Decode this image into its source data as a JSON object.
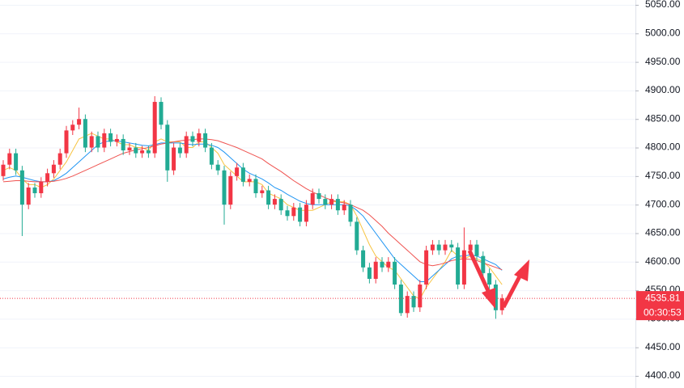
{
  "chart_data": {
    "type": "candlestick",
    "up_color": "#f23645",
    "down_color": "#22ab94",
    "ylim": [
      4400,
      5050
    ],
    "yticks": [
      {
        "value": 4400,
        "label": "4400.00"
      },
      {
        "value": 4450,
        "label": "4450.00"
      },
      {
        "value": 4500,
        "label": "4500.00"
      },
      {
        "value": 4550,
        "label": "4550.00"
      },
      {
        "value": 4600,
        "label": "4600.00"
      },
      {
        "value": 4650,
        "label": "4650.00"
      },
      {
        "value": 4700,
        "label": "4700.00"
      },
      {
        "value": 4750,
        "label": "4750.00"
      },
      {
        "value": 4800,
        "label": "4800.00"
      },
      {
        "value": 4850,
        "label": "4850.00"
      },
      {
        "value": 4900,
        "label": "4900.00"
      },
      {
        "value": 4950,
        "label": "4950.00"
      },
      {
        "value": 5000,
        "label": "5000.00"
      },
      {
        "value": 5050,
        "label": "5050.00"
      }
    ],
    "grid": true,
    "last_price": 4535.81,
    "countdown": "00:30:53",
    "open": [
      4750,
      4770,
      4790,
      4760,
      4700,
      4730,
      4720,
      4740,
      4755,
      4770,
      4790,
      4830,
      4840,
      4850,
      4800,
      4820,
      4800,
      4825,
      4810,
      4815,
      4795,
      4800,
      4790,
      4795,
      4790,
      4880,
      4840,
      4760,
      4800,
      4790,
      4820,
      4810,
      4825,
      4800,
      4770,
      4760,
      4700,
      4750,
      4765,
      4740,
      4745,
      4720,
      4725,
      4700,
      4710,
      4690,
      4680,
      4695,
      4670,
      4700,
      4720,
      4710,
      4700,
      4710,
      4690,
      4700,
      4670,
      4620,
      4590,
      4570,
      4600,
      4590,
      4600,
      4560,
      4510,
      4540,
      4520,
      4560,
      4620,
      4630,
      4620,
      4630,
      4625,
      4560,
      4620,
      4630,
      4610,
      4580,
      4560,
      4515
    ],
    "high": [
      4778,
      4798,
      4798,
      4768,
      4738,
      4738,
      4748,
      4763,
      4778,
      4798,
      4838,
      4848,
      4870,
      4858,
      4828,
      4828,
      4833,
      4833,
      4823,
      4823,
      4808,
      4808,
      4803,
      4803,
      4890,
      4888,
      4848,
      4808,
      4808,
      4828,
      4828,
      4833,
      4833,
      4808,
      4778,
      4768,
      4758,
      4773,
      4773,
      4753,
      4753,
      4733,
      4733,
      4718,
      4718,
      4698,
      4703,
      4703,
      4708,
      4728,
      4728,
      4718,
      4718,
      4718,
      4708,
      4708,
      4678,
      4628,
      4598,
      4608,
      4608,
      4608,
      4608,
      4568,
      4548,
      4548,
      4568,
      4628,
      4638,
      4638,
      4638,
      4638,
      4633,
      4660,
      4638,
      4638,
      4618,
      4588,
      4568,
      4543
    ],
    "low": [
      4742,
      4762,
      4752,
      4645,
      4692,
      4712,
      4712,
      4732,
      4747,
      4762,
      4782,
      4822,
      4832,
      4792,
      4792,
      4792,
      4792,
      4802,
      4802,
      4787,
      4787,
      4782,
      4782,
      4782,
      4782,
      4832,
      4740,
      4752,
      4782,
      4782,
      4802,
      4802,
      4792,
      4762,
      4752,
      4665,
      4692,
      4742,
      4732,
      4732,
      4712,
      4712,
      4692,
      4692,
      4682,
      4672,
      4672,
      4662,
      4662,
      4692,
      4702,
      4692,
      4692,
      4682,
      4682,
      4662,
      4612,
      4582,
      4562,
      4562,
      4582,
      4582,
      4552,
      4505,
      4502,
      4512,
      4512,
      4552,
      4612,
      4612,
      4612,
      4617,
      4552,
      4552,
      4612,
      4602,
      4572,
      4552,
      4500,
      4507
    ],
    "close": [
      4770,
      4790,
      4760,
      4700,
      4730,
      4720,
      4740,
      4755,
      4770,
      4790,
      4830,
      4840,
      4850,
      4800,
      4820,
      4800,
      4825,
      4810,
      4815,
      4795,
      4800,
      4790,
      4795,
      4790,
      4880,
      4840,
      4760,
      4800,
      4790,
      4820,
      4810,
      4825,
      4800,
      4770,
      4760,
      4700,
      4750,
      4765,
      4740,
      4745,
      4720,
      4725,
      4700,
      4710,
      4690,
      4680,
      4695,
      4670,
      4700,
      4720,
      4710,
      4700,
      4710,
      4690,
      4700,
      4670,
      4620,
      4590,
      4570,
      4600,
      4590,
      4600,
      4560,
      4510,
      4540,
      4520,
      4560,
      4620,
      4630,
      4620,
      4630,
      4625,
      4560,
      4620,
      4630,
      4610,
      4580,
      4560,
      4515,
      4535.81
    ],
    "series": [
      {
        "color": "#f7c340",
        "values": [
          4760,
          4765,
          4760,
          4745,
          4735,
          4735,
          4730,
          4735,
          4745,
          4760,
          4775,
          4795,
          4815,
          4820,
          4825,
          4820,
          4815,
          4815,
          4810,
          4805,
          4805,
          4800,
          4800,
          4795,
          4810,
          4815,
          4810,
          4810,
          4810,
          4800,
          4800,
          4810,
          4810,
          4800,
          4790,
          4770,
          4760,
          4750,
          4740,
          4740,
          4740,
          4735,
          4720,
          4715,
          4710,
          4700,
          4695,
          4690,
          4690,
          4690,
          4695,
          4700,
          4705,
          4705,
          4705,
          4700,
          4680,
          4655,
          4630,
          4610,
          4600,
          4590,
          4585,
          4570,
          4555,
          4540,
          4535,
          4555,
          4570,
          4585,
          4600,
          4620,
          4610,
          4605,
          4610,
          4605,
          4600,
          4590,
          4575,
          4560
        ]
      },
      {
        "color": "#2196f3",
        "values": [
          4745,
          4748,
          4750,
          4748,
          4745,
          4742,
          4740,
          4740,
          4742,
          4748,
          4755,
          4765,
          4775,
          4785,
          4795,
          4805,
          4810,
          4812,
          4812,
          4810,
          4808,
          4806,
          4804,
          4803,
          4805,
          4808,
          4808,
          4808,
          4808,
          4806,
          4805,
          4806,
          4806,
          4804,
          4800,
          4792,
          4782,
          4772,
          4762,
          4755,
          4750,
          4745,
          4738,
          4730,
          4725,
          4718,
          4712,
          4706,
          4702,
          4700,
          4700,
          4700,
          4700,
          4700,
          4700,
          4698,
          4690,
          4680,
          4665,
          4650,
          4635,
          4620,
          4605,
          4595,
          4585,
          4575,
          4565,
          4565,
          4575,
          4585,
          4595,
          4605,
          4610,
          4610,
          4612,
          4610,
          4605,
          4600,
          4595,
          4585
        ]
      },
      {
        "color": "#ef5350",
        "values": [
          4740,
          4741,
          4742,
          4742,
          4741,
          4740,
          4740,
          4740,
          4741,
          4743,
          4746,
          4750,
          4755,
          4760,
          4765,
          4770,
          4775,
          4780,
          4785,
          4790,
          4793,
          4796,
          4798,
          4800,
          4803,
          4806,
          4808,
          4810,
          4812,
          4813,
          4814,
          4815,
          4815,
          4814,
          4812,
          4808,
          4804,
          4800,
          4795,
          4790,
          4785,
          4780,
          4772,
          4765,
          4758,
          4750,
          4742,
          4735,
          4728,
          4722,
          4717,
          4712,
          4708,
          4705,
          4703,
          4700,
          4695,
          4690,
          4682,
          4672,
          4662,
          4650,
          4640,
          4630,
          4620,
          4610,
          4600,
          4595,
          4593,
          4595,
          4598,
          4602,
          4604,
          4605,
          4604,
          4602,
          4598,
          4594,
          4590,
          4586
        ]
      }
    ]
  }
}
